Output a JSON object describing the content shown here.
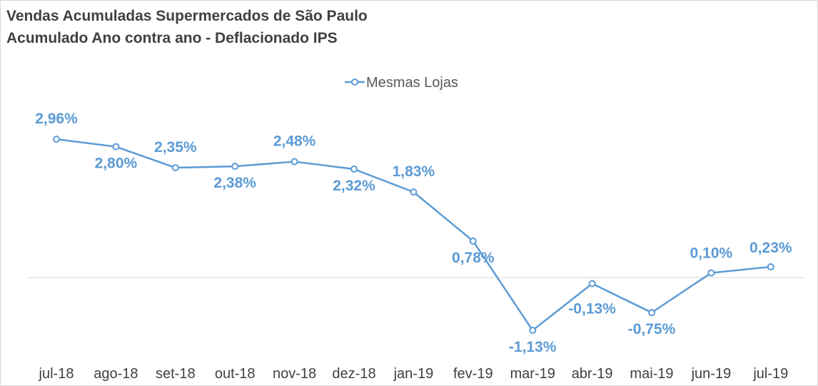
{
  "chart_data": {
    "type": "line",
    "title": "Vendas Acumuladas Supermercados de São Paulo",
    "subtitle": "Acumulado Ano contra ano - Deflacionado IPS",
    "categories": [
      "jul-18",
      "ago-18",
      "set-18",
      "out-18",
      "nov-18",
      "dez-18",
      "jan-19",
      "fev-19",
      "mar-19",
      "abr-19",
      "mai-19",
      "jun-19",
      "jul-19"
    ],
    "series": [
      {
        "name": "Mesmas Lojas",
        "values": [
          2.96,
          2.8,
          2.35,
          2.38,
          2.48,
          2.32,
          1.83,
          0.78,
          -1.13,
          -0.13,
          -0.75,
          0.1,
          0.23
        ],
        "labels": [
          "2,96%",
          "2,80%",
          "2,35%",
          "2,38%",
          "2,48%",
          "2,32%",
          "1,83%",
          "0,78%",
          "-1,13%",
          "-0,13%",
          "-0,75%",
          "0,10%",
          "0,23%"
        ],
        "color": "#5b9bd5"
      }
    ],
    "legend_position": "top-center",
    "grid": false,
    "zero_line": true
  }
}
